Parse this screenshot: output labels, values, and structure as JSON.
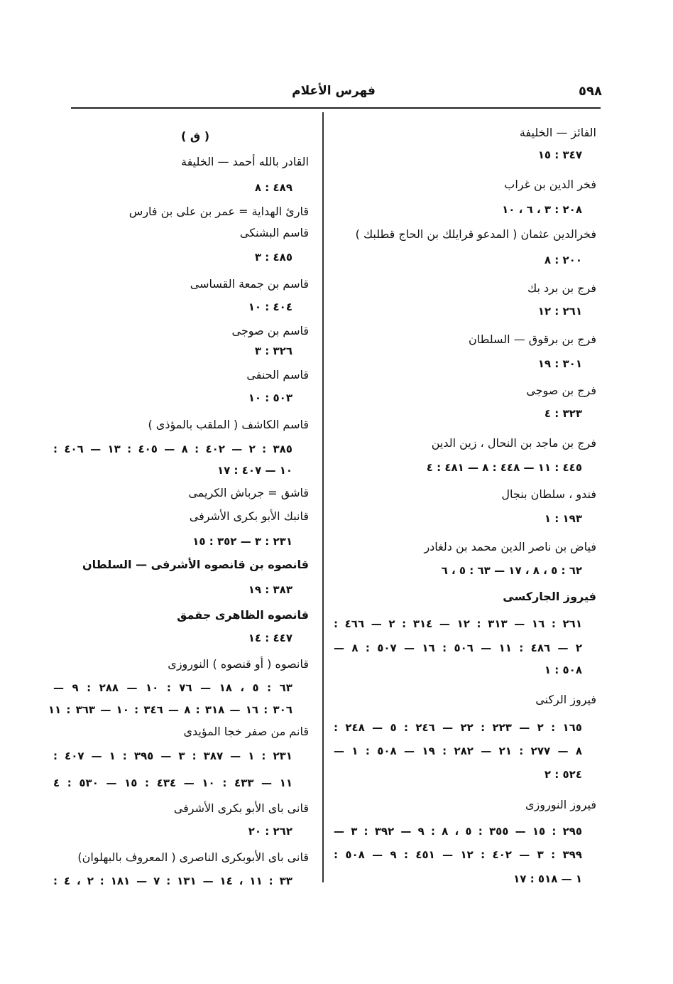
{
  "header": {
    "title": "فهرس الأعلام",
    "page_number": "٥٩٨"
  },
  "right_column": {
    "lines": [
      {
        "kind": "name",
        "text": "الفائز — الخليفة"
      },
      {
        "kind": "refs",
        "text": "٣٤٧ : ١٥"
      },
      {
        "kind": "name",
        "text": "فخر الدين بن غراب"
      },
      {
        "kind": "refs",
        "text": "٢٠٨ : ٣ ، ٦ ، ١٠"
      },
      {
        "kind": "name",
        "text": "فخرالدين عثمان ( المدعو قرايلك بن الحاج قطلبك )"
      },
      {
        "kind": "refs",
        "text": "٢٠٠ : ٨"
      },
      {
        "kind": "name",
        "text": "فرج بن برد بك"
      },
      {
        "kind": "refs",
        "text": "٢٦١ : ١٢"
      },
      {
        "kind": "name",
        "text": "فرج بن برقوق — السلطان"
      },
      {
        "kind": "refs",
        "text": "٣٠١ : ١٩"
      },
      {
        "kind": "name",
        "text": "فرج بن صوجى"
      },
      {
        "kind": "refs",
        "text": "٣٢٣ : ٤"
      },
      {
        "kind": "name",
        "text": "فرج بن ماجد بن النحال ، زين الدين"
      },
      {
        "kind": "refs",
        "text": "٤٤٥ : ١١ — ٤٤٨ : ٨ — ٤٨١ : ٤"
      },
      {
        "kind": "name",
        "text": "فندو ، سلطان بنجال"
      },
      {
        "kind": "refs",
        "text": "١٩٣ : ١"
      },
      {
        "kind": "name",
        "text": "فياض بن ناصر الدين محمد بن دلغادر"
      },
      {
        "kind": "refs",
        "text": "٦٢ : ٥ ، ٨ ، ١٧ — ٦٣ : ٥ ، ٦"
      },
      {
        "kind": "bold",
        "text": "فيروز الجاركسى"
      },
      {
        "kind": "refs",
        "text": "٢٦١ : ١٦ — ٣١٣ : ١٢ — ٣١٤ : ٢ — ٤٦٦ :"
      },
      {
        "kind": "refs",
        "text": "٢ — ٤٨٦ : ١١ — ٥٠٦ : ١٦ — ٥٠٧ : ٨ —"
      },
      {
        "kind": "refs",
        "text": "٥٠٨ : ١"
      },
      {
        "kind": "name",
        "text": "فيروز الركنى"
      },
      {
        "kind": "refs",
        "text": "١٦٥ : ٢ — ٢٢٣ : ٢٢ — ٢٤٦ : ٥ — ٢٤٨ :"
      },
      {
        "kind": "refs",
        "text": "٨ — ٢٧٧ : ٢١ — ٢٨٢ : ١٩ — ٥٠٨ : ١ —"
      },
      {
        "kind": "refs",
        "text": "٥٢٤ : ٢"
      },
      {
        "kind": "name",
        "text": "فيروز النوروزى"
      },
      {
        "kind": "refs",
        "text": "٢٩٥ : ١٥ — ٣٥٥ : ٥ ، ٨ : ٩ — ٣٩٢ : ٣ —"
      },
      {
        "kind": "refs",
        "text": "٣٩٩ : ٣ — ٤٠٢ : ١٢ — ٤٥١ : ٩ — ٥٠٨ :"
      },
      {
        "kind": "refs",
        "text": "١ — ٥١٨ : ١٧"
      }
    ]
  },
  "left_column": {
    "lines": [
      {
        "kind": "section",
        "text": "( ق )"
      },
      {
        "kind": "name",
        "text": "القادر بالله أحمد — الخليفة"
      },
      {
        "kind": "refs",
        "text": "٤٨٩ : ٨"
      },
      {
        "kind": "name",
        "text": "قارئ الهداية = عمر بن على بن فارس"
      },
      {
        "kind": "name",
        "text": "قاسم البشنكى"
      },
      {
        "kind": "refs",
        "text": "٤٨٥ : ٣"
      },
      {
        "kind": "name",
        "text": "قاسم بن جمعة القساسى"
      },
      {
        "kind": "refs",
        "text": "٤٠٤ : ١٠"
      },
      {
        "kind": "name",
        "text": "قاسم بن صوجى"
      },
      {
        "kind": "refs",
        "text": "٣٢٦ : ٣"
      },
      {
        "kind": "name",
        "text": "قاسم الحنفى"
      },
      {
        "kind": "refs",
        "text": "٥٠٣ : ١٠"
      },
      {
        "kind": "name",
        "text": "قاسم الكاشف ( الملقب بالمؤذى )"
      },
      {
        "kind": "refs",
        "text": "٣٨٥ : ٢ — ٤٠٢ : ٨ — ٤٠٥ : ١٣ — ٤٠٦ :"
      },
      {
        "kind": "refs",
        "text": "١٠ — ٤٠٧ : ١٧"
      },
      {
        "kind": "name",
        "text": "قاشق = جرباش الكريمى"
      },
      {
        "kind": "name",
        "text": "قانبك الأبو بكرى الأشرفى"
      },
      {
        "kind": "refs",
        "text": "٢٣١ : ٣ — ٣٥٢ : ١٥"
      },
      {
        "kind": "bold",
        "text": "قانصوه بن قانصوه الأشرفى — السلطان"
      },
      {
        "kind": "refs",
        "text": "٣٨٣ : ١٩"
      },
      {
        "kind": "bold",
        "text": "قانصوه الظاهرى جقمق"
      },
      {
        "kind": "refs",
        "text": "٤٤٧ : ١٤"
      },
      {
        "kind": "name",
        "text": "قانصوه ( أو قنصوه ) النوروزى"
      },
      {
        "kind": "refs",
        "text": "٦٣ : ٥ ، ١٨ — ٧٦ : ١٠ — ٢٨٨ : ٩ —"
      },
      {
        "kind": "refs",
        "text": "٣٠٦ : ١٦ — ٣١٨ : ٨ — ٣٤٦ : ١٠ — ٣٦٣ : ١١"
      },
      {
        "kind": "name",
        "text": "قانم من صفر خجا المؤيدى"
      },
      {
        "kind": "refs",
        "text": "٢٣١ : ١ — ٣٨٧ : ٣ — ٣٩٥ : ١ — ٤٠٧ :"
      },
      {
        "kind": "refs",
        "text": "١١ — ٤٣٣ : ١٠ — ٤٣٤ : ١٥ — ٥٣٠ : ٤"
      },
      {
        "kind": "name",
        "text": "قانى باى الأبو بكرى الأشرفى"
      },
      {
        "kind": "refs",
        "text": "٢٦٢ : ٢٠"
      },
      {
        "kind": "name",
        "text": "قانى باى الأبوبكرى الناصرى ( المعروف بالبهلوان)"
      },
      {
        "kind": "refs",
        "text": "٣٣ : ١١ ، ١٤ — ١٣١ : ٧ — ١٨١ : ٢ ، ٤ :"
      }
    ]
  }
}
